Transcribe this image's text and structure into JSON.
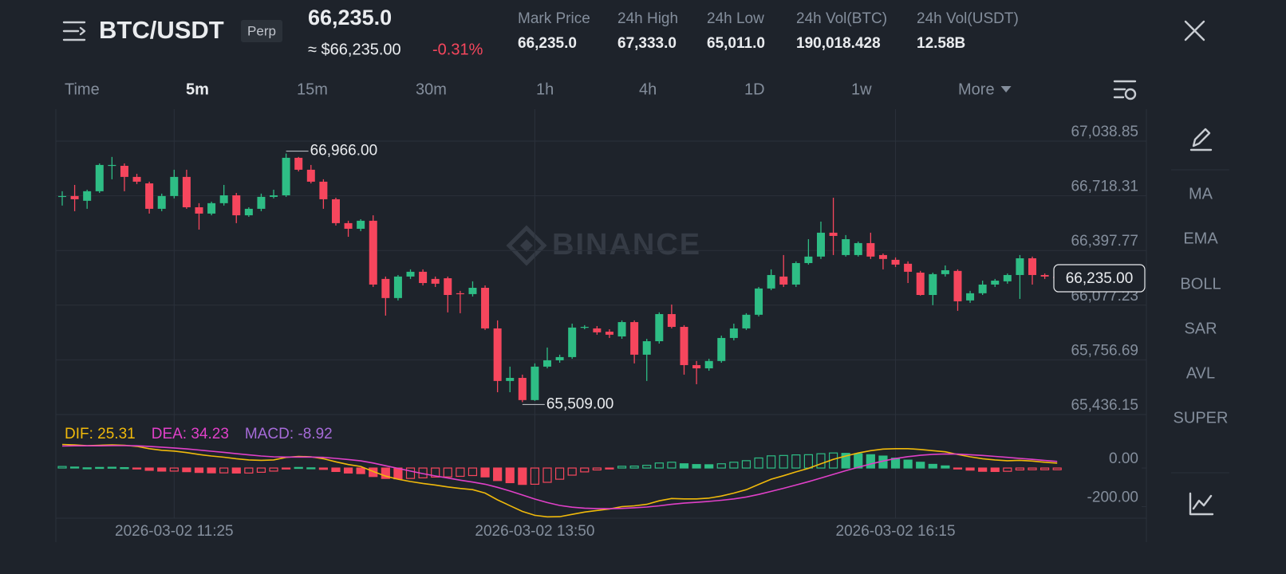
{
  "header": {
    "symbol": "BTC/USDT",
    "tag": "Perp",
    "last_price": "66,235.0",
    "usd_price": "≈ $66,235.00",
    "change": "-0.31%",
    "stats": [
      {
        "label": "Mark Price",
        "value": "66,235.0"
      },
      {
        "label": "24h High",
        "value": "67,333.0"
      },
      {
        "label": "24h Low",
        "value": "65,011.0"
      },
      {
        "label": "24h Vol(BTC)",
        "value": "190,018.428"
      },
      {
        "label": "24h Vol(USDT)",
        "value": "12.58B"
      }
    ]
  },
  "intervals": [
    "Time",
    "5m",
    "15m",
    "30m",
    "1h",
    "4h",
    "1D",
    "1w",
    "More"
  ],
  "indicators": [
    "MA",
    "EMA",
    "BOLL",
    "SAR",
    "AVL",
    "SUPER"
  ],
  "watermark": "BINANCE",
  "chart_data": [
    {
      "type": "candlestick",
      "categories": [
        null,
        null,
        null,
        null,
        null,
        null,
        null,
        null,
        null,
        "2026-03-02 11:25",
        null,
        null,
        null,
        null,
        null,
        null,
        null,
        null,
        null,
        null,
        null,
        null,
        null,
        null,
        null,
        null,
        null,
        null,
        null,
        null,
        null,
        null,
        null,
        null,
        null,
        null,
        null,
        null,
        "2026-03-02 13:50",
        null,
        null,
        null,
        null,
        null,
        null,
        null,
        null,
        null,
        null,
        null,
        null,
        null,
        null,
        null,
        null,
        null,
        null,
        null,
        null,
        null,
        null,
        null,
        null,
        null,
        null,
        null,
        null,
        "2026-03-02 16:15",
        null,
        null,
        null,
        null,
        null,
        null,
        null,
        null,
        null,
        null,
        null,
        null,
        null
      ],
      "open": [
        66712,
        66717,
        66689,
        66745,
        66894,
        66894,
        66829,
        66791,
        66642,
        66717,
        66829,
        66651,
        66614,
        66675,
        66721,
        66604,
        66642,
        66712,
        66721,
        66941,
        66871,
        66801,
        66698,
        66558,
        66525,
        66572,
        66231,
        66119,
        66245,
        66273,
        66231,
        66235,
        66147,
        66142,
        66179,
        65941,
        65633,
        65651,
        65521,
        65717,
        65754,
        65773,
        65946,
        65941,
        65922,
        65894,
        65978,
        65787,
        65866,
        66025,
        65950,
        65726,
        65707,
        65750,
        65885,
        65941,
        66021,
        66175,
        66245,
        66198,
        66324,
        66362,
        66502,
        66371,
        66371,
        66441,
        66371,
        66343,
        66320,
        66268,
        66137,
        66259,
        66278,
        66105,
        66147,
        66198,
        66217,
        66254,
        66352,
        66254,
        66245
      ],
      "high": [
        66745,
        66782,
        66754,
        66908,
        66946,
        66908,
        66847,
        66801,
        66731,
        66871,
        66871,
        66675,
        66684,
        66782,
        66735,
        66651,
        66731,
        66754,
        66966,
        66946,
        66899,
        66815,
        66707,
        66572,
        66581,
        66604,
        66245,
        66254,
        66287,
        66287,
        66245,
        66245,
        66161,
        66217,
        66193,
        65988,
        65717,
        65670,
        65736,
        65829,
        65787,
        65969,
        65960,
        65955,
        65936,
        65988,
        65988,
        65880,
        66035,
        66081,
        65960,
        65750,
        65763,
        65899,
        65969,
        66030,
        66184,
        66287,
        66371,
        66334,
        66464,
        66567,
        66707,
        66488,
        66450,
        66502,
        66380,
        66357,
        66334,
        66278,
        66268,
        66310,
        66287,
        66161,
        66221,
        66231,
        66263,
        66371,
        66362,
        66263,
        66259
      ],
      "low": [
        66661,
        66628,
        66642,
        66735,
        66815,
        66745,
        66787,
        66614,
        66628,
        66703,
        66642,
        66520,
        66604,
        66661,
        66558,
        66595,
        66628,
        66703,
        66712,
        66861,
        66791,
        66642,
        66544,
        66478,
        66511,
        66184,
        66016,
        66105,
        66231,
        66193,
        66184,
        66035,
        66030,
        66128,
        65932,
        65567,
        65567,
        65509,
        65516,
        65707,
        65740,
        65763,
        65936,
        65904,
        65885,
        65880,
        65736,
        65633,
        65852,
        65941,
        65670,
        65614,
        65693,
        65740,
        65871,
        65932,
        66011,
        66165,
        66184,
        66184,
        66315,
        66348,
        66371,
        66362,
        66362,
        66348,
        66287,
        66301,
        66207,
        66133,
        66077,
        66245,
        66044,
        66091,
        66137,
        66184,
        66203,
        66114,
        66198,
        66231,
        66226
      ],
      "close": [
        66717,
        66698,
        66745,
        66899,
        66899,
        66829,
        66801,
        66642,
        66717,
        66829,
        66651,
        66614,
        66675,
        66721,
        66604,
        66642,
        66712,
        66721,
        66941,
        66871,
        66801,
        66698,
        66558,
        66525,
        66572,
        66198,
        66119,
        66245,
        66273,
        66207,
        66203,
        66137,
        66142,
        66179,
        65941,
        65633,
        65651,
        65521,
        65717,
        65754,
        65773,
        65946,
        65950,
        65918,
        65904,
        65978,
        65787,
        65866,
        66025,
        65950,
        65726,
        65707,
        65750,
        65885,
        65941,
        66021,
        66175,
        66254,
        66198,
        66324,
        66362,
        66502,
        66483,
        66464,
        66441,
        66362,
        66348,
        66315,
        66273,
        66137,
        66259,
        66282,
        66100,
        66147,
        66198,
        66221,
        66254,
        66352,
        66254,
        66245,
        66235
      ],
      "up_color": "#2ebd85",
      "down_color": "#f6465d",
      "ylim": [
        65436.15,
        67225.7
      ],
      "yticks": [
        {
          "value": 67038.85,
          "label": "67,038.85"
        },
        {
          "value": 66718.31,
          "label": "66,718.31"
        },
        {
          "value": 66397.77,
          "label": "66,397.77"
        },
        {
          "value": 66077.23,
          "label": "66,077.23"
        },
        {
          "value": 65756.69,
          "label": "65,756.69"
        },
        {
          "value": 65436.15,
          "label": "65,436.15"
        }
      ],
      "grid": true,
      "annotations": [
        {
          "value": 66966,
          "label": "66,966.00"
        },
        {
          "value": 65509,
          "label": "65,509.00"
        }
      ],
      "last_price": {
        "value": 66235,
        "label": "66,235.00"
      }
    },
    {
      "type": "macd",
      "ylim": [
        -260,
        277
      ],
      "yticks": [
        {
          "value": 0,
          "label": "0.00"
        },
        {
          "value": -200,
          "label": "-200.00"
        }
      ],
      "up_color": "#2ebd85",
      "down_color": "#f6465d",
      "series": [
        {
          "name": "DIF: 25.31",
          "type": "line",
          "color": "#f0b90b",
          "values": [
            122,
            120,
            116,
            118,
            120,
            118,
            112,
            100,
            92,
            88,
            80,
            70,
            62,
            56,
            48,
            42,
            40,
            42,
            55,
            60,
            58,
            48,
            32,
            18,
            8,
            -18,
            -42,
            -58,
            -70,
            -80,
            -88,
            -98,
            -106,
            -112,
            -130,
            -165,
            -195,
            -225,
            -245,
            -253,
            -252,
            -240,
            -228,
            -220,
            -212,
            -200,
            -196,
            -188,
            -170,
            -158,
            -160,
            -160,
            -156,
            -145,
            -130,
            -112,
            -85,
            -58,
            -40,
            -20,
            -2,
            22,
            45,
            62,
            78,
            90,
            98,
            100,
            100,
            96,
            90,
            84,
            70,
            58,
            48,
            42,
            38,
            40,
            36,
            30,
            25.31
          ]
        },
        {
          "name": "DEA: 34.23",
          "type": "line",
          "color": "#e040c8",
          "values": [
            114,
            115,
            115,
            115,
            116,
            116,
            115,
            112,
            108,
            104,
            99,
            93,
            87,
            81,
            74,
            68,
            62,
            58,
            57,
            57,
            57,
            55,
            50,
            44,
            37,
            26,
            12,
            -2,
            -16,
            -29,
            -41,
            -52,
            -63,
            -73,
            -84,
            -100,
            -119,
            -140,
            -161,
            -179,
            -194,
            -203,
            -208,
            -210,
            -211,
            -209,
            -206,
            -202,
            -196,
            -188,
            -182,
            -178,
            -173,
            -167,
            -160,
            -150,
            -137,
            -121,
            -105,
            -88,
            -71,
            -52,
            -33,
            -14,
            4,
            21,
            36,
            49,
            59,
            66,
            71,
            73,
            72,
            69,
            65,
            60,
            55,
            50,
            45,
            39,
            34.23
          ]
        },
        {
          "name": "MACD: -8.92",
          "type": "bar",
          "color": "#a66bd8",
          "values": [
            8,
            5,
            1,
            3,
            4,
            2,
            -3,
            -12,
            -16,
            -16,
            -19,
            -23,
            -25,
            -25,
            -26,
            -26,
            -22,
            -16,
            -2,
            3,
            1,
            -7,
            -18,
            -26,
            -29,
            -44,
            -54,
            -56,
            -54,
            -51,
            -47,
            -46,
            -43,
            -39,
            -46,
            -65,
            -76,
            -85,
            -84,
            -74,
            -58,
            -37,
            -20,
            -10,
            -1,
            9,
            10,
            14,
            26,
            30,
            22,
            18,
            17,
            22,
            30,
            38,
            52,
            63,
            65,
            68,
            69,
            74,
            78,
            76,
            74,
            69,
            62,
            51,
            41,
            30,
            19,
            11,
            -2,
            -11,
            -17,
            -18,
            -17,
            -10,
            -9,
            -9,
            -8.92
          ]
        }
      ]
    }
  ]
}
